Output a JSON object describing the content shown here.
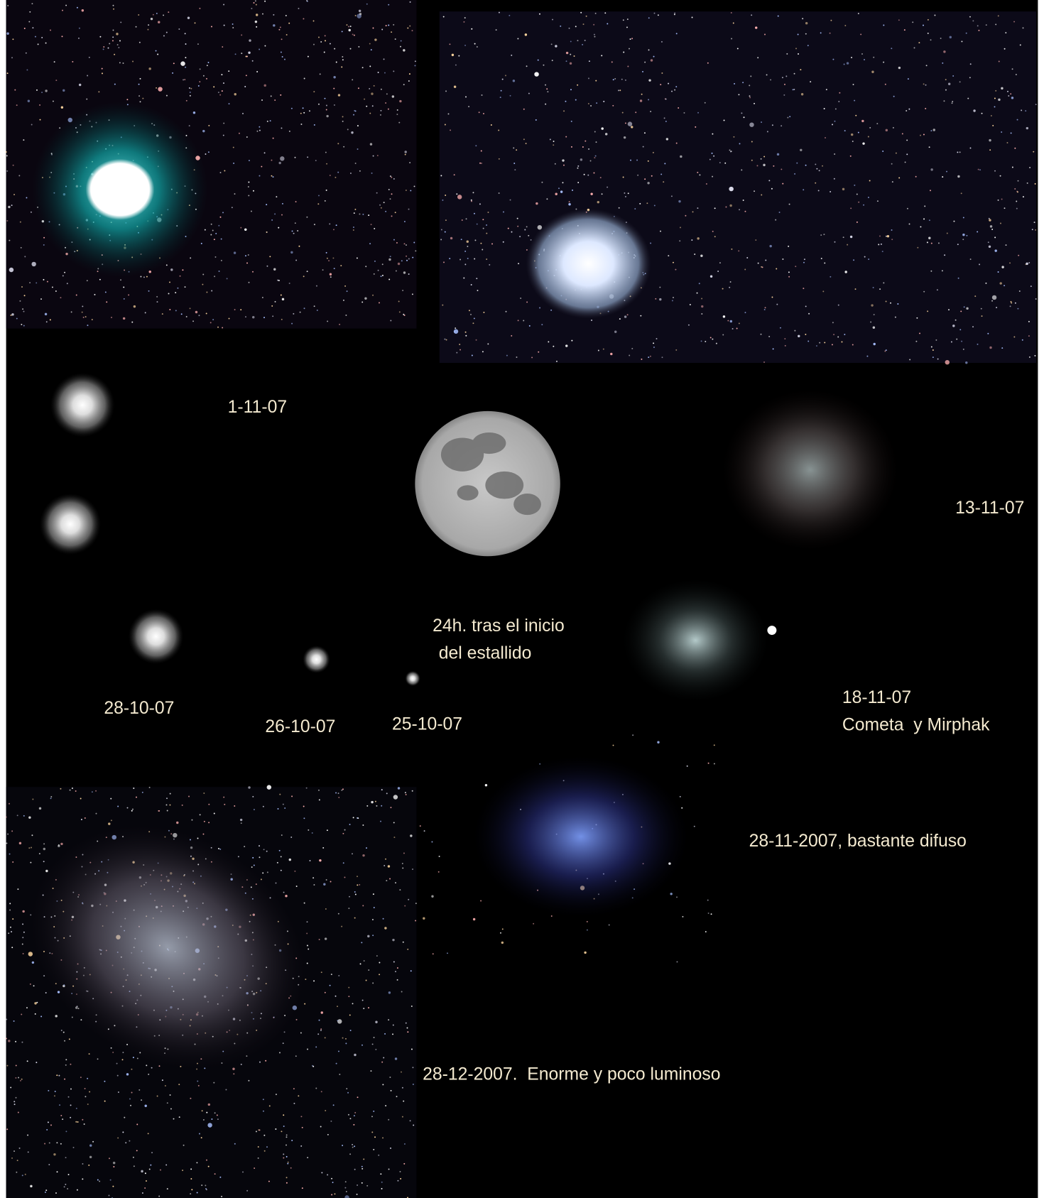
{
  "captions": [
    "1-11-07",
    "13-11-07",
    "24h. tras el inicio",
    "del estallido",
    "28-10-07",
    "26-10-07",
    "25-10-07",
    "18-11-07",
    "Cometa  y Mirphak",
    "28-11-2007, bastante difuso",
    "28-12-2007.  Enorme y poco luminoso"
  ]
}
